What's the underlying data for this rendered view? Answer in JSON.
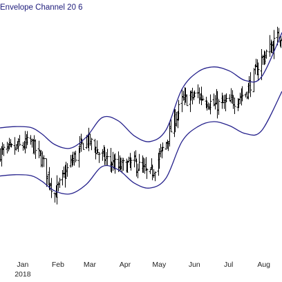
{
  "chart_data": {
    "type": "line",
    "title": "Envelope Channel 20 6",
    "xlabel": "",
    "ylabel": "",
    "x_start": "2017-12-26",
    "x_end": "2018-08-31",
    "ylim": [
      72,
      130
    ],
    "grid": false,
    "colors": {
      "envelope": "#25218c",
      "bars": "#000000"
    },
    "x_ticks": [
      {
        "date": "2018-01-15",
        "label": "Jan",
        "sublabel": "2018"
      },
      {
        "date": "2018-02-15",
        "label": "Feb",
        "sublabel": ""
      },
      {
        "date": "2018-03-15",
        "label": "Mar",
        "sublabel": ""
      },
      {
        "date": "2018-04-15",
        "label": "Apr",
        "sublabel": ""
      },
      {
        "date": "2018-05-15",
        "label": "May",
        "sublabel": ""
      },
      {
        "date": "2018-06-15",
        "label": "Jun",
        "sublabel": ""
      },
      {
        "date": "2018-07-15",
        "label": "Jul",
        "sublabel": ""
      },
      {
        "date": "2018-08-15",
        "label": "Aug",
        "sublabel": ""
      }
    ],
    "envelope": {
      "dates": [
        "2017-12-26",
        "2018-01-08",
        "2018-01-22",
        "2018-02-01",
        "2018-02-12",
        "2018-02-26",
        "2018-03-12",
        "2018-03-26",
        "2018-04-09",
        "2018-04-23",
        "2018-05-07",
        "2018-05-21",
        "2018-06-04",
        "2018-06-18",
        "2018-07-02",
        "2018-07-16",
        "2018-07-30",
        "2018-08-13",
        "2018-08-31"
      ],
      "upper": [
        102.5,
        102.8,
        102.6,
        101.0,
        98.5,
        97.6,
        100.3,
        105.0,
        104.2,
        100.6,
        99.2,
        102.0,
        111.8,
        116.0,
        117.2,
        116.2,
        113.9,
        114.8,
        125.5
      ],
      "middle": [
        96.7,
        97.0,
        96.8,
        95.3,
        92.9,
        92.1,
        94.6,
        99.1,
        98.3,
        94.9,
        93.6,
        96.2,
        105.5,
        109.4,
        110.6,
        109.6,
        107.5,
        108.3,
        118.4
      ],
      "lower": [
        90.9,
        91.2,
        91.0,
        89.6,
        87.3,
        86.6,
        88.9,
        93.2,
        92.4,
        89.2,
        88.0,
        90.4,
        99.2,
        102.8,
        104.0,
        103.0,
        101.1,
        101.8,
        111.3
      ]
    },
    "price": {
      "dates": [
        "2017-12-26",
        "2018-01-08",
        "2018-01-22",
        "2018-02-01",
        "2018-02-12",
        "2018-02-26",
        "2018-03-12",
        "2018-03-26",
        "2018-04-09",
        "2018-04-23",
        "2018-05-07",
        "2018-05-21",
        "2018-06-04",
        "2018-06-18",
        "2018-07-02",
        "2018-07-16",
        "2018-07-30",
        "2018-08-13",
        "2018-08-31"
      ],
      "values": [
        96.5,
        97.5,
        99.0,
        94.5,
        86.5,
        94.0,
        100.0,
        95.5,
        93.0,
        94.0,
        91.0,
        99.0,
        109.0,
        110.5,
        108.0,
        108.5,
        111.0,
        119.0,
        125.5
      ]
    }
  }
}
